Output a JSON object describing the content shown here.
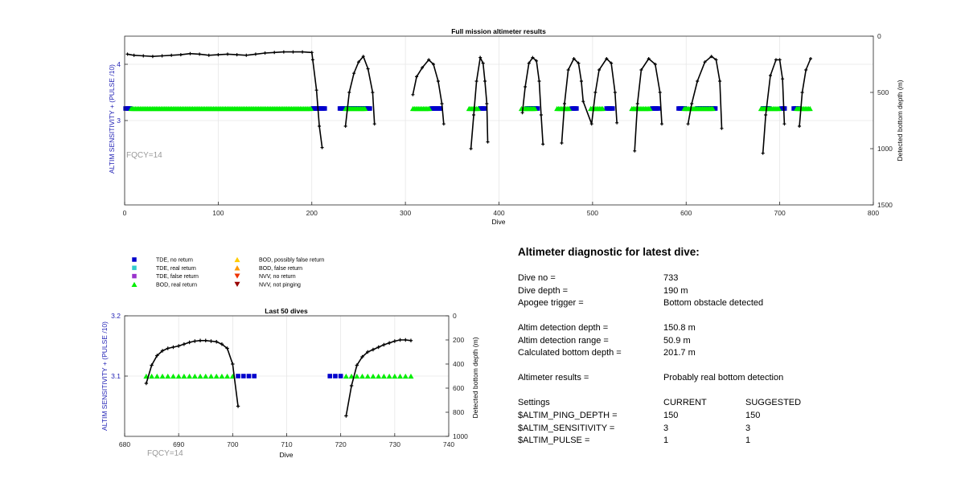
{
  "chart_data": [
    {
      "type": "scatter",
      "title": "Full mission altimeter results",
      "xlabel": "Dive",
      "ylabel": "ALTIM SENSITIVITY + (PULSE /10)",
      "y2label": "Detected bottom depth (m)",
      "xlim": [
        0,
        800
      ],
      "ylim": [
        1.5,
        4.5
      ],
      "y2lim": [
        1500,
        0
      ],
      "xticks": [
        0,
        100,
        200,
        300,
        400,
        500,
        600,
        700,
        800
      ],
      "yticks": [
        3,
        4
      ],
      "y2ticks": [
        0,
        500,
        1000,
        1500
      ],
      "grid": true,
      "annotation": "FQCY=14",
      "series": [
        {
          "name": "TDE, no return",
          "color": "#0000cc",
          "marker": "square",
          "segments": [
            [
              1,
              6
            ],
            [
              201,
              214
            ],
            [
              230,
              262
            ],
            [
              328,
              338
            ],
            [
              380,
              386
            ],
            [
              430,
              442
            ],
            [
              478,
              484
            ],
            [
              515,
              522
            ],
            [
              564,
              572
            ],
            [
              592,
              600
            ],
            [
              612,
              632
            ],
            [
              682,
              690
            ],
            [
              702,
              706
            ],
            [
              715,
              720
            ]
          ]
        },
        {
          "name": "BOD, real return",
          "color": "#00ee00",
          "marker": "triangle",
          "segments": [
            [
              7,
              200
            ],
            [
              236,
              258
            ],
            [
              308,
              326
            ],
            [
              368,
              378
            ],
            [
              424,
              440
            ],
            [
              462,
              476
            ],
            [
              498,
              512
            ],
            [
              542,
              562
            ],
            [
              598,
              630
            ],
            [
              680,
              700
            ],
            [
              718,
              733
            ]
          ]
        }
      ],
      "depth_series": {
        "name": "Detected bottom depth",
        "color": "#000000",
        "points": [
          [
            3,
            160
          ],
          [
            10,
            170
          ],
          [
            20,
            175
          ],
          [
            30,
            180
          ],
          [
            40,
            175
          ],
          [
            50,
            170
          ],
          [
            60,
            165
          ],
          [
            70,
            155
          ],
          [
            80,
            160
          ],
          [
            90,
            170
          ],
          [
            100,
            165
          ],
          [
            110,
            160
          ],
          [
            120,
            165
          ],
          [
            130,
            170
          ],
          [
            140,
            160
          ],
          [
            150,
            150
          ],
          [
            160,
            145
          ],
          [
            170,
            140
          ],
          [
            180,
            140
          ],
          [
            190,
            140
          ],
          [
            200,
            145
          ],
          [
            201,
            210
          ],
          [
            205,
            480
          ],
          [
            208,
            800
          ],
          [
            211,
            990
          ],
          [
            236,
            800
          ],
          [
            240,
            500
          ],
          [
            245,
            330
          ],
          [
            250,
            230
          ],
          [
            255,
            180
          ],
          [
            260,
            290
          ],
          [
            265,
            500
          ],
          [
            267,
            780
          ],
          [
            308,
            520
          ],
          [
            312,
            360
          ],
          [
            318,
            280
          ],
          [
            325,
            210
          ],
          [
            330,
            250
          ],
          [
            335,
            400
          ],
          [
            339,
            600
          ],
          [
            341,
            780
          ],
          [
            370,
            1000
          ],
          [
            373,
            700
          ],
          [
            376,
            400
          ],
          [
            380,
            190
          ],
          [
            383,
            240
          ],
          [
            385,
            400
          ],
          [
            387,
            600
          ],
          [
            388,
            940
          ],
          [
            425,
            680
          ],
          [
            428,
            450
          ],
          [
            432,
            240
          ],
          [
            436,
            190
          ],
          [
            440,
            220
          ],
          [
            443,
            400
          ],
          [
            445,
            700
          ],
          [
            447,
            960
          ],
          [
            467,
            950
          ],
          [
            470,
            600
          ],
          [
            474,
            300
          ],
          [
            480,
            200
          ],
          [
            485,
            240
          ],
          [
            488,
            400
          ],
          [
            490,
            580
          ],
          [
            499,
            780
          ],
          [
            503,
            500
          ],
          [
            507,
            300
          ],
          [
            515,
            200
          ],
          [
            520,
            240
          ],
          [
            524,
            500
          ],
          [
            526,
            770
          ],
          [
            545,
            1020
          ],
          [
            548,
            600
          ],
          [
            552,
            300
          ],
          [
            560,
            200
          ],
          [
            567,
            250
          ],
          [
            572,
            500
          ],
          [
            574,
            780
          ],
          [
            602,
            780
          ],
          [
            606,
            600
          ],
          [
            612,
            400
          ],
          [
            620,
            230
          ],
          [
            627,
            180
          ],
          [
            632,
            210
          ],
          [
            636,
            400
          ],
          [
            638,
            820
          ],
          [
            682,
            1040
          ],
          [
            685,
            700
          ],
          [
            690,
            350
          ],
          [
            696,
            210
          ],
          [
            700,
            210
          ],
          [
            703,
            380
          ],
          [
            705,
            780
          ],
          [
            721,
            800
          ],
          [
            724,
            500
          ],
          [
            728,
            300
          ],
          [
            733,
            200
          ]
        ]
      }
    },
    {
      "type": "scatter",
      "title": "Last 50 dives",
      "xlabel": "Dive",
      "ylabel": "ALTIM SENSITIVITY + (PULSE /10)",
      "y2label": "Detected bottom depth (m)",
      "xlim": [
        680,
        740
      ],
      "ylim": [
        3.0,
        3.2
      ],
      "y2lim": [
        1000,
        0
      ],
      "xticks": [
        680,
        690,
        700,
        710,
        720,
        730,
        740
      ],
      "yticks": [
        3.1,
        3.2
      ],
      "y2ticks": [
        0,
        200,
        400,
        600,
        800,
        1000
      ],
      "grid": true,
      "annotation": "FQCY=14",
      "series": [
        {
          "name": "TDE, no return",
          "color": "#0000cc",
          "marker": "square",
          "x": [
            701,
            702,
            703,
            704,
            718,
            719,
            720
          ],
          "y": [
            3.1,
            3.1,
            3.1,
            3.1,
            3.1,
            3.1,
            3.1
          ]
        },
        {
          "name": "BOD, real return",
          "color": "#00ee00",
          "marker": "triangle",
          "x": [
            684,
            685,
            686,
            687,
            688,
            689,
            690,
            691,
            692,
            693,
            694,
            695,
            696,
            697,
            698,
            699,
            700,
            721,
            722,
            723,
            724,
            725,
            726,
            727,
            728,
            729,
            730,
            731,
            732,
            733
          ],
          "y": [
            3.1,
            3.1,
            3.1,
            3.1,
            3.1,
            3.1,
            3.1,
            3.1,
            3.1,
            3.1,
            3.1,
            3.1,
            3.1,
            3.1,
            3.1,
            3.1,
            3.1,
            3.1,
            3.1,
            3.1,
            3.1,
            3.1,
            3.1,
            3.1,
            3.1,
            3.1,
            3.1,
            3.1,
            3.1,
            3.1
          ]
        }
      ],
      "depth_series": {
        "name": "Detected bottom depth",
        "color": "#000000",
        "segments": [
          [
            [
              684,
              560
            ],
            [
              685,
              410
            ],
            [
              686,
              330
            ],
            [
              687,
              290
            ],
            [
              688,
              270
            ],
            [
              689,
              260
            ],
            [
              690,
              250
            ],
            [
              691,
              235
            ],
            [
              692,
              220
            ],
            [
              693,
              210
            ],
            [
              694,
              205
            ],
            [
              695,
              205
            ],
            [
              696,
              210
            ],
            [
              697,
              215
            ],
            [
              698,
              235
            ],
            [
              699,
              270
            ],
            [
              700,
              400
            ],
            [
              701,
              750
            ]
          ],
          [
            [
              721,
              830
            ],
            [
              722,
              580
            ],
            [
              723,
              410
            ],
            [
              724,
              340
            ],
            [
              725,
              300
            ],
            [
              726,
              280
            ],
            [
              727,
              260
            ],
            [
              728,
              240
            ],
            [
              729,
              225
            ],
            [
              730,
              210
            ],
            [
              731,
              200
            ],
            [
              732,
              200
            ],
            [
              733,
              205
            ]
          ]
        ]
      }
    }
  ],
  "legend": {
    "items": [
      {
        "label": "TDE, no return",
        "color": "#0000cc",
        "marker": "square"
      },
      {
        "label": "TDE, real return",
        "color": "#33cccc",
        "marker": "square"
      },
      {
        "label": "TDE, false return",
        "color": "#9933cc",
        "marker": "square"
      },
      {
        "label": "BOD, real return",
        "color": "#00ee00",
        "marker": "triangle-up"
      },
      {
        "label": "BOD, possibly false return",
        "color": "#ffcc00",
        "marker": "triangle-up"
      },
      {
        "label": "BOD, false return",
        "color": "#ff9900",
        "marker": "triangle-up"
      },
      {
        "label": "NVV, no return",
        "color": "#ee3300",
        "marker": "triangle-down"
      },
      {
        "label": "NVV, not pinging",
        "color": "#990000",
        "marker": "triangle-down"
      }
    ]
  },
  "diagnostic": {
    "title": "Altimeter diagnostic for latest dive:",
    "dive_no_label": "Dive no =",
    "dive_no": "733",
    "dive_depth_label": "Dive depth =",
    "dive_depth": "190 m",
    "apogee_label": "Apogee trigger =",
    "apogee": "Bottom obstacle detected",
    "altim_depth_label": "Altim detection depth =",
    "altim_depth": "150.8 m",
    "altim_range_label": "Altim detection range =",
    "altim_range": "50.9 m",
    "calc_depth_label": "Calculated bottom depth =",
    "calc_depth": "201.7 m",
    "results_label": "Altimeter results =",
    "results": "Probably real bottom detection",
    "settings_label": "Settings",
    "current_label": "CURRENT",
    "suggested_label": "SUGGESTED",
    "settings": [
      {
        "name": "$ALTIM_PING_DEPTH =",
        "current": "150",
        "suggested": "150"
      },
      {
        "name": "$ALTIM_SENSITIVITY =",
        "current": "3",
        "suggested": "3"
      },
      {
        "name": "$ALTIM_PULSE =",
        "current": "1",
        "suggested": "1"
      }
    ]
  }
}
